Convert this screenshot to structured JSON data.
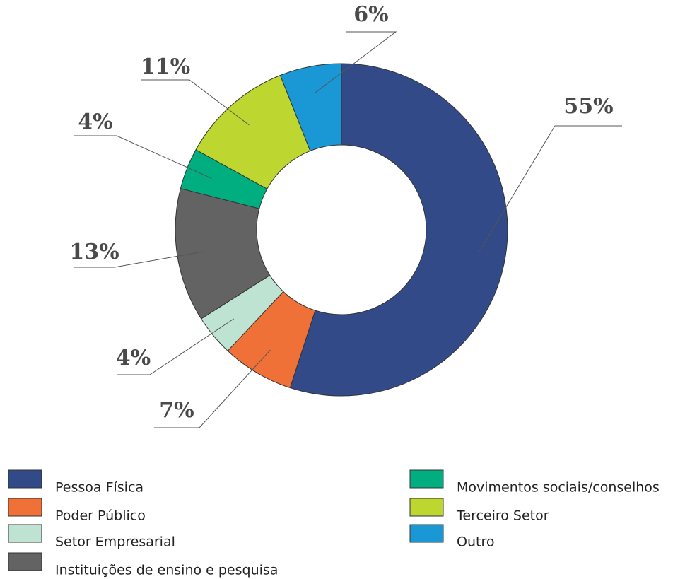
{
  "chart_data": {
    "type": "donut",
    "categories": [
      "Pessoa Física",
      "Poder Público",
      "Setor Empresarial",
      "Instituições de ensino e pesquisa",
      "Movimentos sociais/conselhos",
      "Terceiro Setor",
      "Outro"
    ],
    "values": [
      55,
      7,
      4,
      13,
      4,
      11,
      6
    ],
    "value_labels": [
      "55%",
      "7%",
      "4%",
      "13%",
      "4%",
      "11%",
      "6%"
    ],
    "colors": [
      "#324a87",
      "#f07138",
      "#bfe3d3",
      "#636363",
      "#00ae7f",
      "#bdd630",
      "#1a98d5"
    ]
  }
}
